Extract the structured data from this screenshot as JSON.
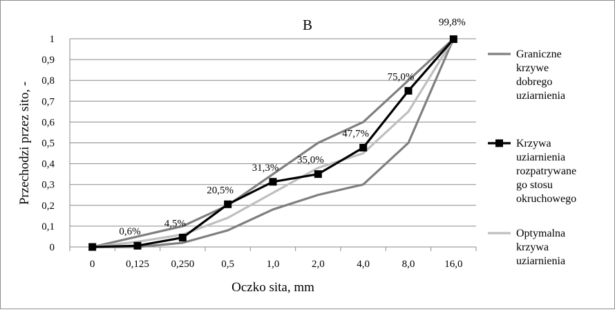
{
  "chart_data": {
    "type": "line",
    "title": "B",
    "xlabel": "Oczko sita, mm",
    "ylabel": "Przechodzi przez sito, -",
    "categories": [
      "0",
      "0,125",
      "0,250",
      "0,5",
      "1,0",
      "2,0",
      "4,0",
      "8,0",
      "16,0"
    ],
    "ylim": [
      0,
      1
    ],
    "yticks": [
      0,
      0.1,
      0.2,
      0.3,
      0.4,
      0.5,
      0.6,
      0.7,
      0.8,
      0.9,
      1
    ],
    "ytick_labels": [
      "0",
      "0,1",
      "0,2",
      "0,3",
      "0,4",
      "0,5",
      "0,6",
      "0,7",
      "0,8",
      "0,9",
      "1"
    ],
    "grid": "horizontal",
    "legend_position": "right",
    "series": [
      {
        "name": "Graniczne krzywe dobrego uziarnienia",
        "name_lines": [
          "Graniczne",
          "krzywe",
          "dobrego",
          "uziarnienia"
        ],
        "color": "#7f7f7f",
        "values": [
          0,
          0.05,
          0.1,
          0.2,
          0.35,
          0.5,
          0.6,
          0.8,
          1.0
        ]
      },
      {
        "name": "",
        "color": "#7f7f7f",
        "values": [
          0,
          0.0,
          0.02,
          0.08,
          0.18,
          0.25,
          0.3,
          0.5,
          1.0
        ]
      },
      {
        "name": "Krzywa uziarnienia rozpatrywanego stosu okruchowego",
        "name_lines": [
          "Krzywa",
          "uziarnienia",
          "rozpatrywane",
          "go stosu",
          "okruchowego"
        ],
        "color": "#000000",
        "marker": "square",
        "values": [
          0,
          0.006,
          0.045,
          0.205,
          0.313,
          0.35,
          0.477,
          0.75,
          0.998
        ],
        "data_labels": [
          "",
          "0,6%",
          "4,5%",
          "20,5%",
          "31,3%",
          "35,0%",
          "47,7%",
          "75,0%",
          "99,8%"
        ]
      },
      {
        "name": "Optymalna krzywa uziarnienia",
        "name_lines": [
          "Optymalna",
          "krzywa",
          "uziarnienia"
        ],
        "color": "#bfbfbf",
        "values": [
          0,
          0.025,
          0.06,
          0.14,
          0.26,
          0.38,
          0.45,
          0.65,
          1.0
        ]
      }
    ]
  }
}
